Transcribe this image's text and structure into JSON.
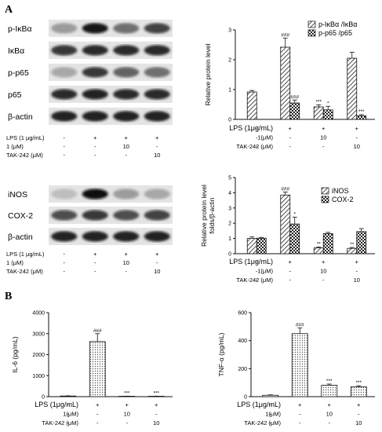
{
  "panels": {
    "a": "A",
    "b": "B"
  },
  "blots": {
    "top": {
      "labels": [
        "p-IκBα",
        "IκBα",
        "p-p65",
        "p65",
        "β-actin"
      ],
      "intensity": [
        [
          0.35,
          0.95,
          0.55,
          0.75
        ],
        [
          0.8,
          0.85,
          0.85,
          0.85
        ],
        [
          0.3,
          0.8,
          0.6,
          0.55
        ],
        [
          0.85,
          0.9,
          0.85,
          0.85
        ],
        [
          0.9,
          0.9,
          0.9,
          0.9
        ]
      ],
      "conditions": {
        "rows": [
          "LPS (1 μg/mL)",
          "1 (μM)",
          "TAK-242 (μM)"
        ],
        "values": [
          [
            "-",
            "+",
            "+",
            "+"
          ],
          [
            "-",
            "-",
            "10",
            "-"
          ],
          [
            "-",
            "-",
            "-",
            "10"
          ]
        ]
      }
    },
    "bottom": {
      "labels": [
        "iNOS",
        "COX-2",
        "β-actin"
      ],
      "intensity": [
        [
          0.2,
          1.0,
          0.35,
          0.3
        ],
        [
          0.7,
          0.8,
          0.7,
          0.75
        ],
        [
          0.9,
          0.9,
          0.9,
          0.9
        ]
      ],
      "conditions": {
        "rows": [
          "LPS (1 μg/mL)",
          "1 (μM)",
          "TAK-242 (μM)"
        ],
        "values": [
          [
            "-",
            "+",
            "+",
            "+"
          ],
          [
            "-",
            "-",
            "10",
            "-"
          ],
          [
            "-",
            "-",
            "-",
            "10"
          ]
        ]
      }
    }
  },
  "chart_data": [
    {
      "type": "bar",
      "ylabel": "Relative protein level",
      "ylim": [
        0,
        3
      ],
      "yticks": [
        "0",
        "1",
        "2",
        "3"
      ],
      "legend_position": "top-right",
      "series": [
        {
          "name": "p-IκBα /IκBα",
          "values": [
            0.92,
            2.42,
            0.42,
            2.05
          ],
          "err": [
            0.05,
            0.3,
            0.07,
            0.2
          ],
          "stars": [
            "",
            "###",
            "***",
            ""
          ]
        },
        {
          "name": "p-p65 /p65",
          "values": [
            null,
            0.55,
            0.32,
            0.12
          ],
          "err": [
            0,
            0.1,
            0.12,
            0.04
          ],
          "stars": [
            "",
            "###",
            "*",
            "***"
          ]
        }
      ],
      "conditions": {
        "rows": [
          "LPS (1μg/mL)",
          "1(μM)",
          "TAK-242 (μM)"
        ],
        "values": [
          [
            "-",
            "+",
            "+",
            "+"
          ],
          [
            "-",
            "-",
            "10",
            "-"
          ],
          [
            "-",
            "-",
            "-",
            "10"
          ]
        ]
      }
    },
    {
      "type": "bar",
      "ylabel": "Relative protein level",
      "ylabel2": "folds/β-actin",
      "ylim": [
        0,
        5
      ],
      "yticks": [
        "0",
        "1",
        "2",
        "3",
        "4",
        "5"
      ],
      "legend_position": "top-right",
      "series": [
        {
          "name": "iNOS",
          "values": [
            1.0,
            3.85,
            0.38,
            0.35
          ],
          "err": [
            0.1,
            0.2,
            0.06,
            0.06
          ],
          "stars": [
            "",
            "###",
            "**",
            "**"
          ]
        },
        {
          "name": "COX-2",
          "values": [
            1.02,
            1.95,
            1.32,
            1.45
          ],
          "err": [
            0.05,
            0.45,
            0.08,
            0.2
          ],
          "stars": [
            "",
            "*",
            "",
            ""
          ]
        }
      ],
      "conditions": {
        "rows": [
          "LPS (1μg/mL)",
          "1(μM)",
          "TAK-242 (μM)"
        ],
        "values": [
          [
            "-",
            "+",
            "+",
            "+"
          ],
          [
            "-",
            "-",
            "10",
            "-"
          ],
          [
            "-",
            "-",
            "-",
            "10"
          ]
        ]
      }
    },
    {
      "type": "bar",
      "ylabel": "IL-6 (pg/mL)",
      "ylim": [
        0,
        4000
      ],
      "yticks": [
        "0",
        "1000",
        "2000",
        "3000",
        "4000"
      ],
      "series": [
        {
          "values": [
            30,
            2620,
            20,
            20
          ],
          "err": [
            10,
            380,
            5,
            5
          ],
          "stars": [
            "",
            "###",
            "***",
            "***"
          ]
        }
      ],
      "conditions": {
        "rows": [
          "LPS (1μg/mL)",
          "1(μM)",
          "TAK-242 (μM)"
        ],
        "values": [
          [
            "-",
            "+",
            "+",
            "+"
          ],
          [
            "-",
            "-",
            "10",
            "-"
          ],
          [
            "-",
            "-",
            "-",
            "10"
          ]
        ]
      }
    },
    {
      "type": "bar",
      "ylabel": "TNF-α (pg/mL)",
      "ylim": [
        0,
        600
      ],
      "yticks": [
        "0",
        "200",
        "400",
        "600"
      ],
      "series": [
        {
          "values": [
            10,
            450,
            82,
            70
          ],
          "err": [
            3,
            40,
            8,
            8
          ],
          "stars": [
            "",
            "###",
            "***",
            "***"
          ]
        }
      ],
      "conditions": {
        "rows": [
          "LPS (1μg/mL)",
          "1(μM)",
          "TAK-242 (μM)"
        ],
        "values": [
          [
            "-",
            "+",
            "+",
            "+"
          ],
          [
            "-",
            "-",
            "10",
            "-"
          ],
          [
            "-",
            "-",
            "-",
            "10"
          ]
        ]
      }
    }
  ]
}
